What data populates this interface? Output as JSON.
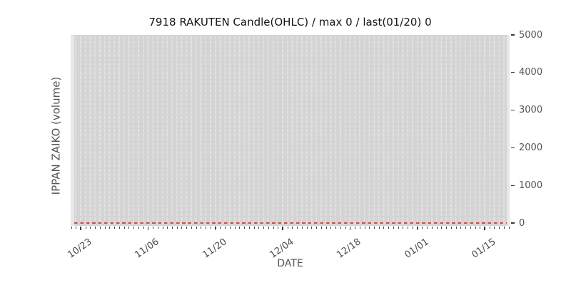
{
  "chart_data": {
    "type": "bar",
    "title": "7918 RAKUTEN Candle(OHLC) / max 0 / last(01/20) 0",
    "xlabel": "DATE",
    "ylabel": "IPPAN ZAIKO (volume)",
    "x_tick_labels": [
      "10/23",
      "11/06",
      "11/20",
      "12/04",
      "12/18",
      "01/01",
      "01/15"
    ],
    "days_per_major_interval": 14,
    "y_ticks": [
      0,
      1000,
      2000,
      3000,
      4000,
      5000
    ],
    "ylim": [
      0,
      5000
    ],
    "series": [
      {
        "name": "IPPAN ZAIKO (volume)",
        "max": 0,
        "last_date": "01/20",
        "last_value": 0,
        "all_values_zero": true,
        "rendering": "red dashed horizontal line at y=0"
      }
    ],
    "grid": {
      "vertical_daily_dashed_gridlines": true,
      "horizontal_gridlines": false
    },
    "legend": "none"
  },
  "colors": {
    "panel_bg": "#e7e7e7",
    "band_bg": "#d4d4d4",
    "gridline": "#e3e3e3",
    "zero_line": "#c9504c",
    "title_text": "#141414",
    "axis_text": "#555555",
    "tick_mark": "#3a3a3a"
  }
}
